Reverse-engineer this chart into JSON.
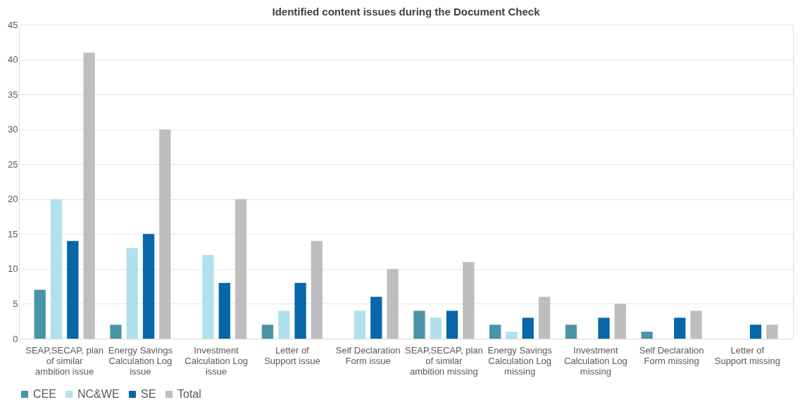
{
  "chart_data": {
    "type": "bar",
    "title": "Identified content issues during the Document Check",
    "categories": [
      "SEAP,SECAP, plan of similar ambition issue",
      "Energy Savings Calculation Log issue",
      "Investment Calculation Log issue",
      "Letter of Support issue",
      "Self Declaration Form issue",
      "SEAP,SECAP, plan of similar ambition missing",
      "Energy Savings Calculation Log missing",
      "Investment Calculation Log missing",
      "Self Declaration Form missing",
      "Letter of Support missing"
    ],
    "series": [
      {
        "name": "CEE",
        "color": "#4a94a8",
        "values": [
          7,
          2,
          0,
          2,
          0,
          4,
          2,
          2,
          1,
          0
        ]
      },
      {
        "name": "NC&WE",
        "color": "#b0e1ed",
        "values": [
          20,
          13,
          12,
          4,
          4,
          3,
          1,
          0,
          0,
          0
        ]
      },
      {
        "name": "SE",
        "color": "#0767a8",
        "values": [
          14,
          15,
          8,
          8,
          6,
          4,
          3,
          3,
          3,
          2
        ]
      },
      {
        "name": "Total",
        "color": "#bebebe",
        "values": [
          41,
          30,
          20,
          14,
          10,
          11,
          6,
          5,
          4,
          2
        ]
      }
    ],
    "ylim": [
      0,
      45
    ],
    "yticks": [
      0,
      5,
      10,
      15,
      20,
      25,
      30,
      35,
      40,
      45
    ],
    "grid": "y",
    "legend": "bottom"
  }
}
